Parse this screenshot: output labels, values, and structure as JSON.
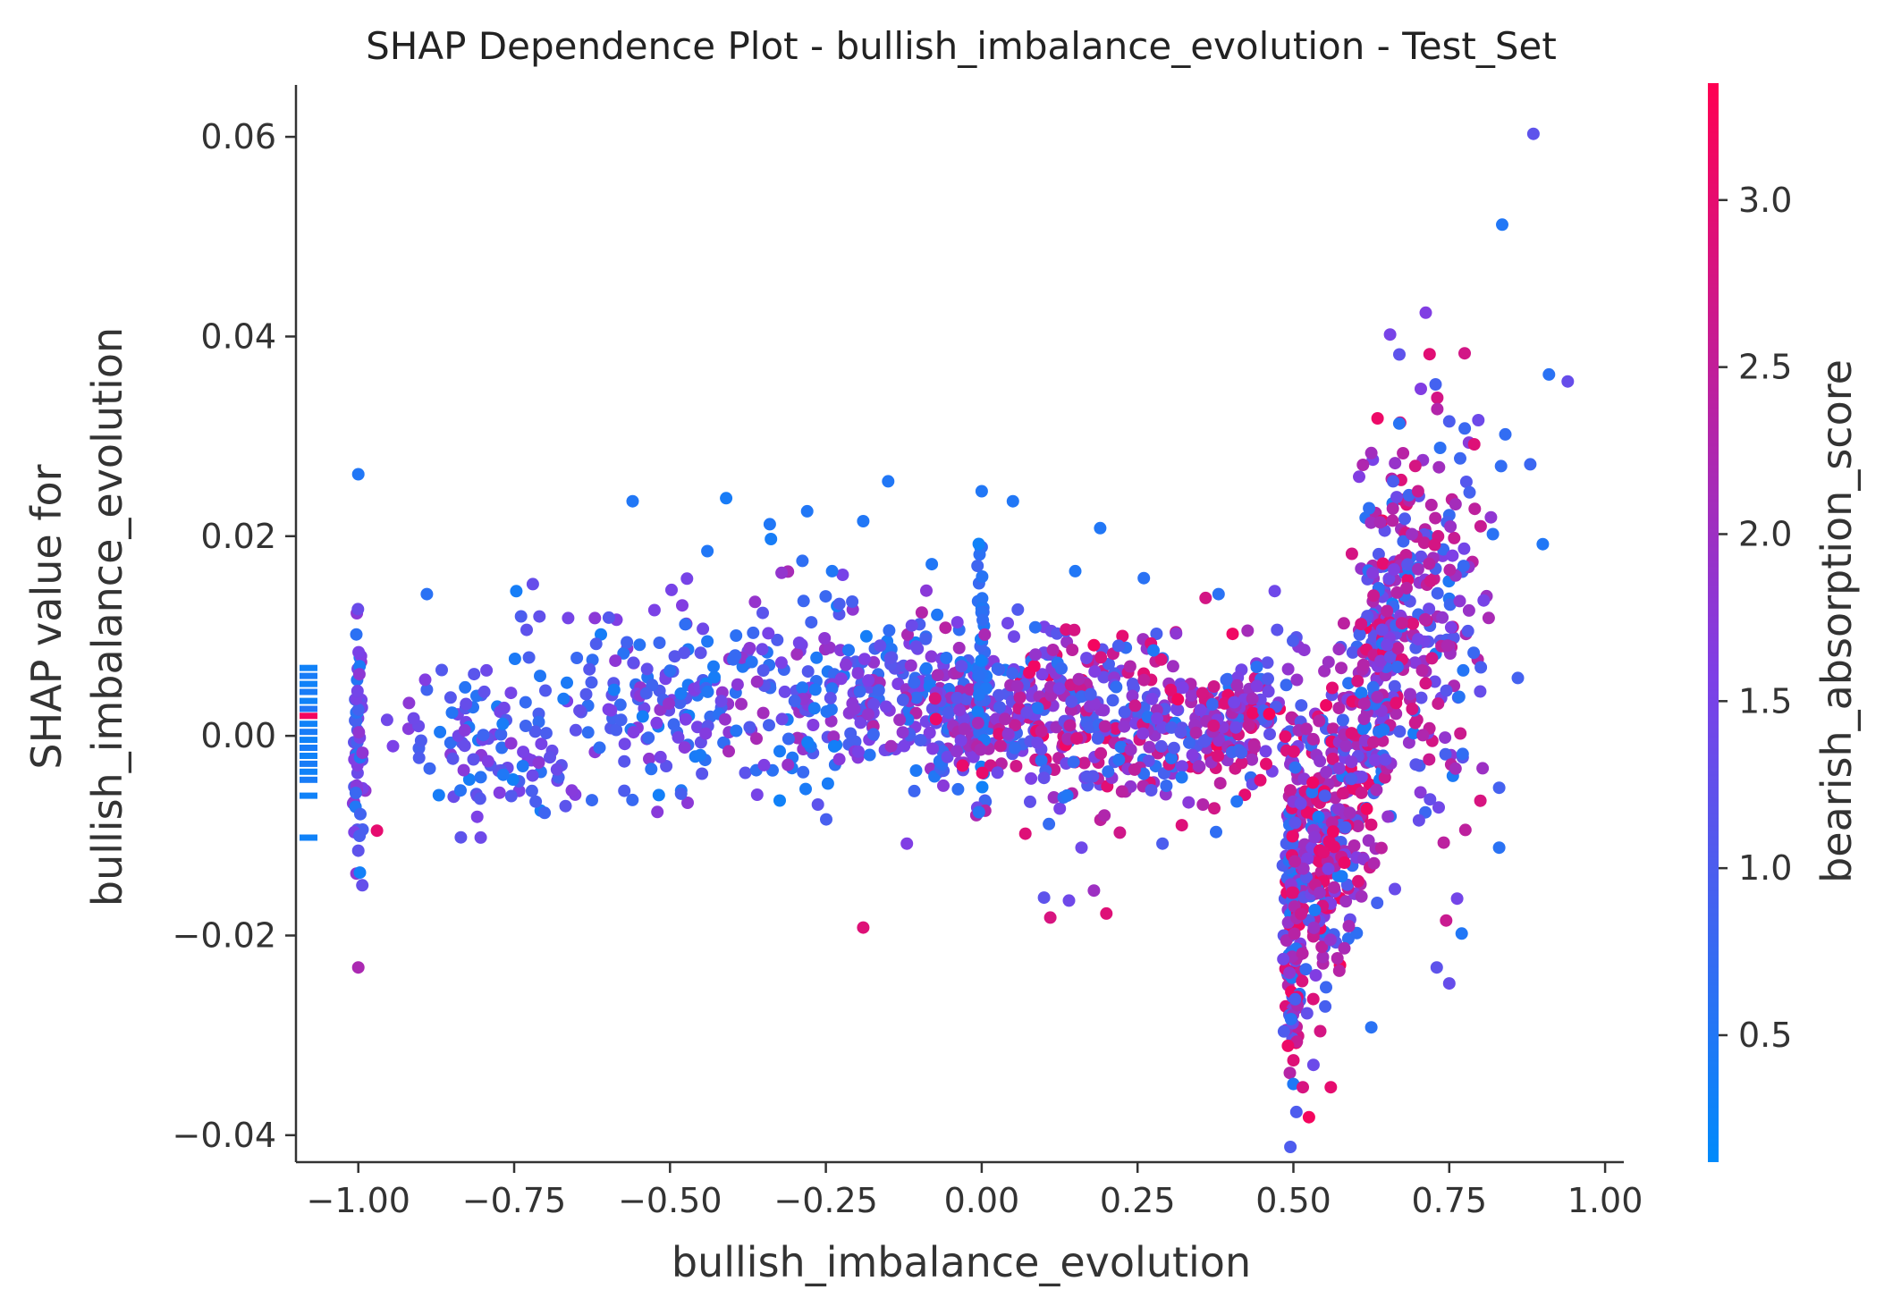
{
  "chart_data": {
    "type": "scatter",
    "title": "SHAP Dependence Plot - bullish_imbalance_evolution - Test_Set",
    "xlabel": "bullish_imbalance_evolution",
    "ylabel_line1": "SHAP value for",
    "ylabel_line2": "bullish_imbalance_evolution",
    "xlim": [
      -1.1,
      1.03
    ],
    "ylim": [
      -0.0427,
      0.0652
    ],
    "xticks": [
      -1.0,
      -0.75,
      -0.5,
      -0.25,
      0.0,
      0.25,
      0.5,
      0.75,
      1.0
    ],
    "xtick_labels": [
      "−1.00",
      "−0.75",
      "−0.50",
      "−0.25",
      "0.00",
      "0.25",
      "0.50",
      "0.75",
      "1.00"
    ],
    "yticks": [
      -0.04,
      -0.02,
      0.0,
      0.02,
      0.04,
      0.06
    ],
    "ytick_labels": [
      "−0.04",
      "−0.02",
      "0.00",
      "0.02",
      "0.04",
      "0.06"
    ],
    "grid": false,
    "colorbar": {
      "label": "bearish_absorption_score",
      "range": [
        0.12,
        3.35
      ],
      "ticks": [
        0.5,
        1.0,
        1.5,
        2.0,
        2.5,
        3.0
      ],
      "tick_labels": [
        "0.5",
        "1.0",
        "1.5",
        "2.0",
        "2.5",
        "3.0"
      ],
      "colormap": [
        "#008bfb",
        "#ff0052"
      ]
    },
    "points": [
      {
        "x": 0.885,
        "y": 0.0603,
        "c": 1.2
      },
      {
        "x": 0.835,
        "y": 0.0512,
        "c": 0.5
      },
      {
        "x": 0.94,
        "y": 0.0355,
        "c": 1.3
      },
      {
        "x": 0.91,
        "y": 0.0362,
        "c": 0.6
      },
      {
        "x": 0.655,
        "y": 0.0402,
        "c": 1.5
      },
      {
        "x": 0.67,
        "y": 0.0382,
        "c": 1.2
      },
      {
        "x": 0.728,
        "y": 0.0352,
        "c": 0.9
      },
      {
        "x": 0.84,
        "y": 0.0302,
        "c": 0.7
      },
      {
        "x": 0.88,
        "y": 0.0272,
        "c": 0.8
      },
      {
        "x": 0.635,
        "y": 0.0318,
        "c": 3.1
      },
      {
        "x": 0.75,
        "y": 0.0315,
        "c": 1.0
      },
      {
        "x": 0.79,
        "y": 0.0292,
        "c": 2.9
      },
      {
        "x": 0.66,
        "y": 0.0255,
        "c": 1.0
      },
      {
        "x": 0.7,
        "y": 0.0245,
        "c": 2.6
      },
      {
        "x": 0.76,
        "y": 0.0232,
        "c": 2.1
      },
      {
        "x": 0.82,
        "y": 0.0202,
        "c": 0.6
      },
      {
        "x": 0.9,
        "y": 0.0192,
        "c": 0.5
      },
      {
        "x": 0.69,
        "y": 0.0202,
        "c": 2.0
      },
      {
        "x": 0.72,
        "y": 0.0155,
        "c": 2.7
      },
      {
        "x": 0.65,
        "y": 0.0125,
        "c": 2.4
      },
      {
        "x": 0.78,
        "y": 0.0105,
        "c": 1.1
      },
      {
        "x": 0.86,
        "y": 0.0058,
        "c": 0.9
      },
      {
        "x": 0.8,
        "y": -0.0065,
        "c": 2.8
      },
      {
        "x": 0.745,
        "y": -0.0185,
        "c": 2.6
      },
      {
        "x": 0.73,
        "y": -0.0232,
        "c": 1.2
      },
      {
        "x": 0.75,
        "y": -0.0248,
        "c": 1.3
      },
      {
        "x": 0.77,
        "y": -0.0198,
        "c": 0.5
      },
      {
        "x": 0.83,
        "y": -0.0112,
        "c": 0.6
      },
      {
        "x": 0.83,
        "y": -0.0052,
        "c": 0.9
      },
      {
        "x": 0.625,
        "y": -0.0292,
        "c": 0.6
      },
      {
        "x": 0.525,
        "y": -0.0382,
        "c": 3.2
      },
      {
        "x": 0.515,
        "y": -0.0352,
        "c": 2.8
      },
      {
        "x": 0.56,
        "y": -0.0352,
        "c": 3.0
      },
      {
        "x": 0.5,
        "y": -0.0325,
        "c": 2.9
      },
      {
        "x": -1.0,
        "y": 0.0262,
        "c": 0.5
      },
      {
        "x": -1.0,
        "y": -0.0232,
        "c": 2.2
      },
      {
        "x": -1.0,
        "y": -0.0115,
        "c": 1.2
      },
      {
        "x": -0.97,
        "y": -0.0095,
        "c": 3.0
      },
      {
        "x": 0.0,
        "y": 0.0245,
        "c": 0.5
      },
      {
        "x": 0.05,
        "y": 0.0235,
        "c": 0.5
      },
      {
        "x": -0.15,
        "y": 0.0255,
        "c": 0.5
      },
      {
        "x": -0.41,
        "y": 0.0238,
        "c": 0.4
      },
      {
        "x": -0.56,
        "y": 0.0235,
        "c": 0.5
      },
      {
        "x": -0.28,
        "y": 0.0225,
        "c": 0.5
      },
      {
        "x": -0.34,
        "y": 0.0212,
        "c": 0.5
      },
      {
        "x": -0.19,
        "y": 0.0215,
        "c": 0.5
      },
      {
        "x": 0.19,
        "y": 0.0208,
        "c": 0.5
      },
      {
        "x": -0.44,
        "y": 0.0185,
        "c": 0.5
      },
      {
        "x": -0.24,
        "y": 0.0165,
        "c": 0.5
      },
      {
        "x": -0.08,
        "y": 0.0172,
        "c": 0.5
      },
      {
        "x": 0.15,
        "y": 0.0165,
        "c": 0.5
      },
      {
        "x": 0.26,
        "y": 0.0158,
        "c": 0.6
      },
      {
        "x": -0.72,
        "y": 0.0152,
        "c": 1.3
      },
      {
        "x": -0.89,
        "y": 0.0142,
        "c": 0.6
      },
      {
        "x": 0.38,
        "y": 0.0142,
        "c": 0.6
      },
      {
        "x": 0.47,
        "y": 0.0145,
        "c": 1.4
      },
      {
        "x": -0.19,
        "y": -0.0192,
        "c": 2.9
      },
      {
        "x": 0.1,
        "y": -0.0162,
        "c": 1.2
      },
      {
        "x": 0.18,
        "y": -0.0155,
        "c": 2.0
      },
      {
        "x": 0.14,
        "y": -0.0165,
        "c": 1.4
      },
      {
        "x": 0.11,
        "y": -0.0182,
        "c": 2.8
      },
      {
        "x": 0.2,
        "y": -0.0178,
        "c": 2.9
      },
      {
        "x": 0.07,
        "y": -0.0098,
        "c": 2.9
      },
      {
        "x": -0.12,
        "y": -0.0108,
        "c": 1.6
      },
      {
        "x": 0.16,
        "y": -0.0112,
        "c": 1.4
      },
      {
        "x": 0.29,
        "y": -0.0108,
        "c": 1.0
      }
    ],
    "clusters": [
      {
        "cx": -1.0,
        "cy": 0.0,
        "sx": 0.004,
        "sy": 0.0075,
        "n": 55,
        "cmin": 0.3,
        "cmax": 2.0
      },
      {
        "cx": -0.78,
        "cy": 0.0,
        "sx": 0.08,
        "sy": 0.005,
        "n": 110,
        "cmin": 0.3,
        "cmax": 1.8
      },
      {
        "cx": -0.5,
        "cy": 0.004,
        "sx": 0.08,
        "sy": 0.0045,
        "n": 150,
        "cmin": 0.3,
        "cmax": 1.9
      },
      {
        "cx": -0.25,
        "cy": 0.004,
        "sx": 0.09,
        "sy": 0.0045,
        "n": 170,
        "cmin": 0.3,
        "cmax": 2.2
      },
      {
        "cx": -0.05,
        "cy": 0.003,
        "sx": 0.06,
        "sy": 0.004,
        "n": 200,
        "cmin": 0.4,
        "cmax": 2.4
      },
      {
        "cx": 0.0,
        "cy": 0.006,
        "sx": 0.004,
        "sy": 0.008,
        "n": 45,
        "cmin": 0.3,
        "cmax": 0.9
      },
      {
        "cx": 0.12,
        "cy": 0.003,
        "sx": 0.07,
        "sy": 0.0045,
        "n": 210,
        "cmin": 0.5,
        "cmax": 3.2
      },
      {
        "cx": 0.3,
        "cy": 0.001,
        "sx": 0.07,
        "sy": 0.004,
        "n": 170,
        "cmin": 0.4,
        "cmax": 3.0
      },
      {
        "cx": 0.42,
        "cy": 0.001,
        "sx": 0.05,
        "sy": 0.0035,
        "n": 130,
        "cmin": 0.5,
        "cmax": 3.3
      },
      {
        "cx": 0.5,
        "cy": -0.018,
        "sx": 0.008,
        "sy": 0.008,
        "n": 150,
        "cmin": 0.4,
        "cmax": 3.3
      },
      {
        "cx": 0.54,
        "cy": -0.012,
        "sx": 0.02,
        "sy": 0.0075,
        "n": 160,
        "cmin": 0.4,
        "cmax": 3.3
      },
      {
        "cx": 0.59,
        "cy": -0.005,
        "sx": 0.025,
        "sy": 0.007,
        "n": 130,
        "cmin": 0.4,
        "cmax": 3.2
      },
      {
        "cx": 0.64,
        "cy": 0.008,
        "sx": 0.02,
        "sy": 0.009,
        "n": 150,
        "cmin": 0.4,
        "cmax": 3.2
      },
      {
        "cx": 0.69,
        "cy": 0.014,
        "sx": 0.03,
        "sy": 0.009,
        "n": 130,
        "cmin": 0.4,
        "cmax": 3.0
      },
      {
        "cx": 0.76,
        "cy": 0.008,
        "sx": 0.035,
        "sy": 0.01,
        "n": 70,
        "cmin": 0.4,
        "cmax": 2.8
      }
    ],
    "left_edge_ticks": [
      {
        "y": 0.0068,
        "c": 0.3
      },
      {
        "y": 0.006,
        "c": 0.4
      },
      {
        "y": 0.0052,
        "c": 0.3
      },
      {
        "y": 0.0044,
        "c": 0.4
      },
      {
        "y": 0.0035,
        "c": 0.3
      },
      {
        "y": 0.0027,
        "c": 0.5
      },
      {
        "y": 0.002,
        "c": 3.2
      },
      {
        "y": 0.0012,
        "c": 0.3
      },
      {
        "y": 0.0004,
        "c": 0.4
      },
      {
        "y": -0.0004,
        "c": 0.3
      },
      {
        "y": -0.0012,
        "c": 0.4
      },
      {
        "y": -0.002,
        "c": 0.3
      },
      {
        "y": -0.0028,
        "c": 0.4
      },
      {
        "y": -0.0036,
        "c": 0.3
      },
      {
        "y": -0.0044,
        "c": 0.4
      },
      {
        "y": -0.006,
        "c": 0.3
      },
      {
        "y": -0.0102,
        "c": 0.3
      }
    ]
  }
}
